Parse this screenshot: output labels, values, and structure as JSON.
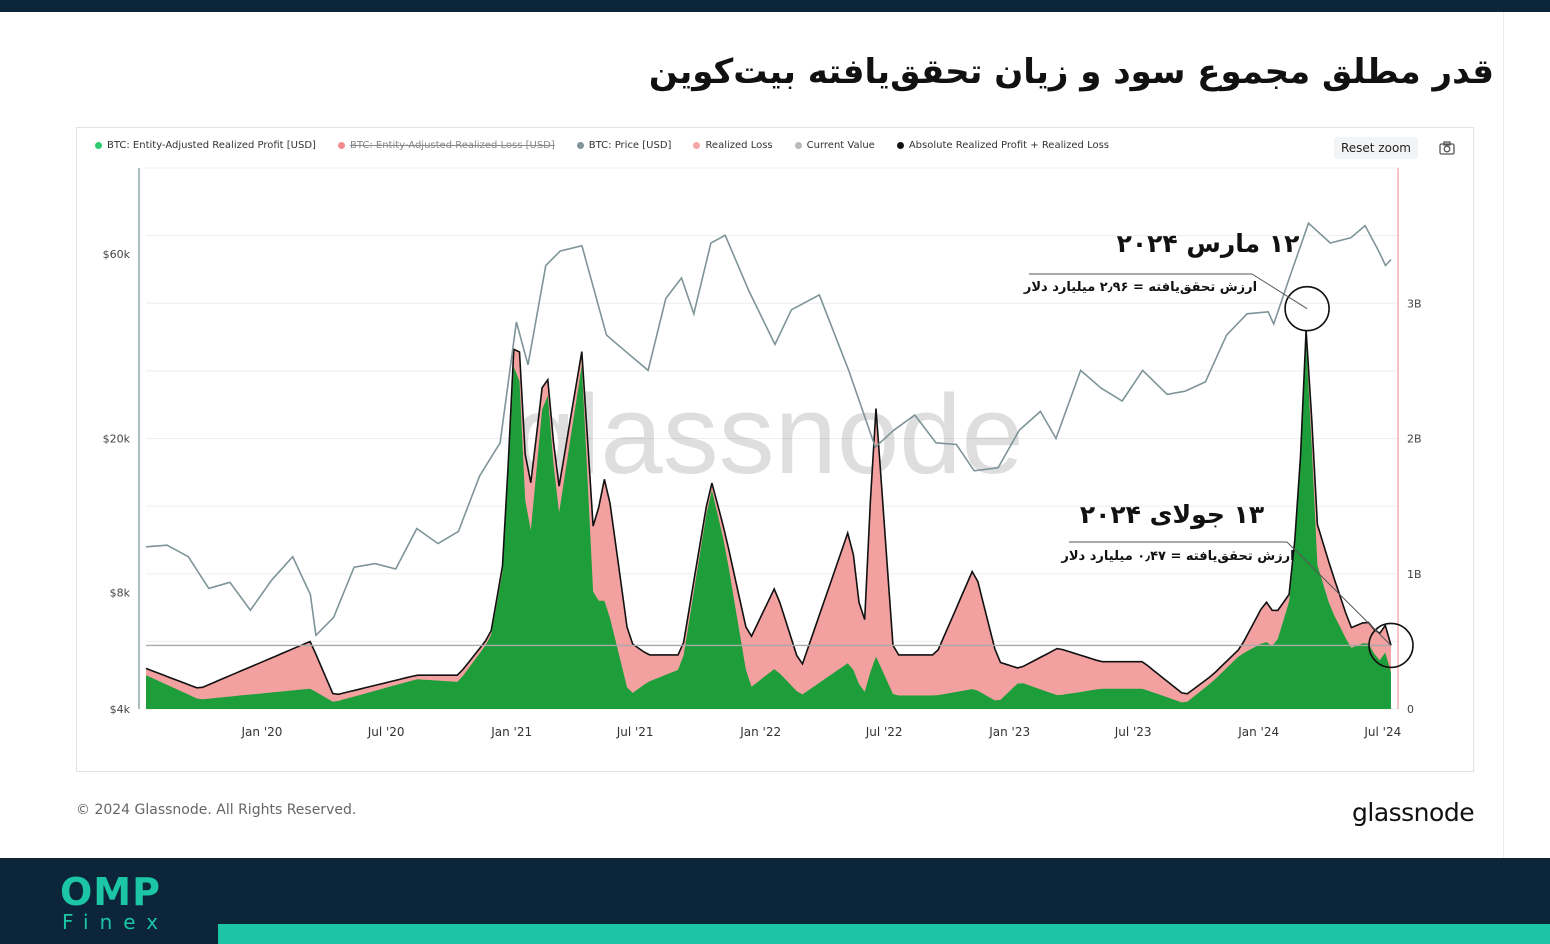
{
  "page": {
    "title": "قدر مطلق مجموع سود و زیان تحقق‌یافته بیت‌کوین"
  },
  "toolbar": {
    "reset_zoom": "Reset zoom",
    "camera_icon": "camera-icon"
  },
  "watermark": "glassnode",
  "footer": {
    "copyright": "© 2024 Glassnode. All Rights Reserved.",
    "brand": "glassnode",
    "logo_top": "OMP",
    "logo_bottom": "Finex"
  },
  "colors": {
    "profit": "#1e9e3a",
    "loss": "#f2a0a0",
    "price": "#7f9499",
    "current": "#b0b0b0",
    "total": "#111111",
    "dark_bg": "#0c2539",
    "accent": "#1bc5a6"
  },
  "annotations": [
    {
      "date_label": "۱۲ مارس ۲۰۲۴",
      "detail": "ارزش تحقق‌یافته = ۲٫۹۶ میلیارد دلار",
      "x": "2024-03-12",
      "value": 2.96
    },
    {
      "date_label": "۱۳ جولای ۲۰۲۴",
      "detail": "ارزش تحقق‌یافته = ۰٫۴۷ میلیارد دلار",
      "x": "2024-07-13",
      "value": 0.47
    }
  ],
  "chart_data": {
    "type": "area",
    "legend_position": "top-left",
    "grid": true,
    "legend": [
      {
        "name": "BTC: Entity-Adjusted Realized Profit [USD]",
        "color": "#2ecc71",
        "struck": false
      },
      {
        "name": "BTC: Entity-Adjusted Realized Loss [USD]",
        "color": "#f28b8b",
        "struck": true
      },
      {
        "name": "BTC: Price [USD]",
        "color": "#7f9499",
        "struck": false
      },
      {
        "name": "Realized Loss",
        "color": "#f5a5a5",
        "struck": false
      },
      {
        "name": "Current Value",
        "color": "#b8b8b8",
        "struck": false
      },
      {
        "name": "Absolute Realized Profit + Realized Loss",
        "color": "#111111",
        "struck": false
      }
    ],
    "x_ticks": [
      {
        "label": "Jan '20",
        "date": "2020-01-01"
      },
      {
        "label": "Jul '20",
        "date": "2020-07-01"
      },
      {
        "label": "Jan '21",
        "date": "2021-01-01"
      },
      {
        "label": "Jul '21",
        "date": "2021-07-01"
      },
      {
        "label": "Jan '22",
        "date": "2022-01-01"
      },
      {
        "label": "Jul '22",
        "date": "2022-07-01"
      },
      {
        "label": "Jan '23",
        "date": "2023-01-01"
      },
      {
        "label": "Jul '23",
        "date": "2023-07-01"
      },
      {
        "label": "Jan '24",
        "date": "2024-01-01"
      },
      {
        "label": "Jul '24",
        "date": "2024-07-01"
      }
    ],
    "x_range": [
      "2019-07-15",
      "2024-07-13"
    ],
    "y_left": {
      "scale": "log",
      "range": [
        4000,
        100000
      ],
      "ticks": [
        {
          "label": "$4k",
          "value": 4000
        },
        {
          "label": "$8k",
          "value": 8000
        },
        {
          "label": "$20k",
          "value": 20000
        },
        {
          "label": "$60k",
          "value": 60000
        }
      ]
    },
    "y_right": {
      "scale": "linear",
      "range": [
        0,
        4
      ],
      "unit": "billion USD",
      "ticks": [
        {
          "label": "0",
          "value": 0
        },
        {
          "label": "1B",
          "value": 1
        },
        {
          "label": "2B",
          "value": 2
        },
        {
          "label": "3B",
          "value": 3
        }
      ]
    },
    "current_value": 0.47,
    "series": [
      {
        "name": "BTC: Price [USD]",
        "axis": "left",
        "x": [
          "2019-07-15",
          "2019-08-15",
          "2019-09-15",
          "2019-10-15",
          "2019-11-15",
          "2019-12-15",
          "2020-01-15",
          "2020-02-15",
          "2020-03-12",
          "2020-03-20",
          "2020-04-15",
          "2020-05-15",
          "2020-06-15",
          "2020-07-15",
          "2020-08-15",
          "2020-09-15",
          "2020-10-15",
          "2020-11-15",
          "2020-12-15",
          "2021-01-08",
          "2021-01-25",
          "2021-02-20",
          "2021-03-13",
          "2021-04-14",
          "2021-05-20",
          "2021-06-22",
          "2021-07-20",
          "2021-08-15",
          "2021-09-07",
          "2021-09-25",
          "2021-10-20",
          "2021-11-10",
          "2021-12-15",
          "2022-01-22",
          "2022-02-15",
          "2022-03-28",
          "2022-05-10",
          "2022-06-18",
          "2022-07-15",
          "2022-08-15",
          "2022-09-15",
          "2022-10-15",
          "2022-11-10",
          "2022-12-15",
          "2023-01-15",
          "2023-02-15",
          "2023-03-10",
          "2023-04-15",
          "2023-05-15",
          "2023-06-15",
          "2023-07-15",
          "2023-08-20",
          "2023-09-15",
          "2023-10-15",
          "2023-11-15",
          "2023-12-15",
          "2024-01-15",
          "2024-01-23",
          "2024-02-15",
          "2024-03-14",
          "2024-04-15",
          "2024-05-15",
          "2024-06-05",
          "2024-06-25",
          "2024-07-05",
          "2024-07-13"
        ],
        "values": [
          10500,
          10600,
          9900,
          8200,
          8500,
          7200,
          8600,
          9900,
          7900,
          6200,
          6900,
          9300,
          9500,
          9200,
          11700,
          10700,
          11500,
          16000,
          19500,
          40000,
          31000,
          56000,
          61000,
          63000,
          37000,
          33000,
          30000,
          46000,
          52000,
          42000,
          64000,
          67000,
          48000,
          35000,
          43000,
          47000,
          30000,
          19000,
          21000,
          23000,
          19500,
          19300,
          16500,
          16800,
          21000,
          23500,
          20000,
          30000,
          27000,
          25000,
          30000,
          26000,
          26500,
          28000,
          37000,
          42000,
          42500,
          39500,
          52000,
          72000,
          64000,
          66000,
          71000,
          61000,
          56000,
          58000
        ]
      },
      {
        "name": "Absolute Realized Profit + Realized Loss",
        "axis": "right",
        "x": [
          "2019-07-15",
          "2019-10-01",
          "2020-03-12",
          "2020-04-15",
          "2020-08-15",
          "2020-10-15",
          "2020-12-01",
          "2020-12-20",
          "2021-01-08",
          "2021-01-25",
          "2021-02-20",
          "2021-03-10",
          "2021-04-14",
          "2021-05-01",
          "2021-05-19",
          "2021-06-22",
          "2021-07-20",
          "2021-09-07",
          "2021-10-20",
          "2021-11-10",
          "2021-12-15",
          "2022-01-22",
          "2022-03-01",
          "2022-05-12",
          "2022-06-01",
          "2022-06-18",
          "2022-07-15",
          "2022-09-15",
          "2022-11-10",
          "2022-12-15",
          "2023-01-15",
          "2023-03-13",
          "2023-05-15",
          "2023-07-15",
          "2023-09-15",
          "2023-10-25",
          "2023-12-05",
          "2024-01-11",
          "2024-01-25",
          "2024-02-15",
          "2024-02-28",
          "2024-03-12",
          "2024-03-25",
          "2024-04-15",
          "2024-05-15",
          "2024-06-08",
          "2024-06-25",
          "2024-07-05",
          "2024-07-13"
        ],
        "values": [
          0.3,
          0.15,
          0.5,
          0.1,
          0.25,
          0.25,
          0.55,
          1.1,
          3.05,
          1.5,
          2.6,
          1.6,
          2.65,
          1.3,
          1.75,
          0.5,
          0.4,
          0.4,
          1.7,
          1.3,
          0.5,
          0.9,
          0.3,
          1.35,
          0.5,
          2.3,
          0.4,
          0.4,
          1.05,
          0.35,
          0.3,
          0.45,
          0.35,
          0.35,
          0.1,
          0.25,
          0.45,
          0.8,
          0.7,
          0.85,
          1.5,
          2.96,
          1.4,
          1.05,
          0.6,
          0.65,
          0.55,
          0.62,
          0.47
        ]
      },
      {
        "name": "Realized Loss",
        "axis": "right",
        "x": [
          "2019-07-15",
          "2019-10-01",
          "2020-03-12",
          "2020-04-15",
          "2020-08-15",
          "2020-10-15",
          "2020-12-01",
          "2020-12-20",
          "2021-01-08",
          "2021-01-25",
          "2021-02-20",
          "2021-03-10",
          "2021-04-14",
          "2021-05-01",
          "2021-05-19",
          "2021-06-22",
          "2021-07-20",
          "2021-09-07",
          "2021-10-20",
          "2021-11-10",
          "2021-12-15",
          "2022-01-22",
          "2022-03-01",
          "2022-05-12",
          "2022-06-01",
          "2022-06-18",
          "2022-07-15",
          "2022-09-15",
          "2022-11-10",
          "2022-12-15",
          "2023-01-15",
          "2023-03-13",
          "2023-05-15",
          "2023-07-15",
          "2023-09-15",
          "2023-10-25",
          "2023-12-05",
          "2024-01-11",
          "2024-01-25",
          "2024-02-15",
          "2024-02-28",
          "2024-03-12",
          "2024-03-25",
          "2024-04-15",
          "2024-05-15",
          "2024-06-08",
          "2024-06-25",
          "2024-07-05",
          "2024-07-13"
        ],
        "values": [
          0.05,
          0.08,
          0.35,
          0.05,
          0.03,
          0.05,
          0.03,
          0.05,
          0.15,
          0.4,
          0.1,
          0.2,
          0.1,
          0.5,
          0.95,
          0.4,
          0.2,
          0.1,
          0.05,
          0.1,
          0.35,
          0.6,
          0.2,
          1.0,
          0.4,
          1.9,
          0.3,
          0.3,
          0.9,
          0.3,
          0.1,
          0.35,
          0.2,
          0.2,
          0.06,
          0.05,
          0.05,
          0.3,
          0.25,
          0.05,
          0.05,
          0.1,
          0.3,
          0.3,
          0.15,
          0.15,
          0.2,
          0.2,
          0.2
        ]
      },
      {
        "name": "Current Value",
        "axis": "right",
        "x": [
          "2019-07-15",
          "2024-07-13"
        ],
        "values": [
          0.47,
          0.47
        ]
      }
    ]
  }
}
